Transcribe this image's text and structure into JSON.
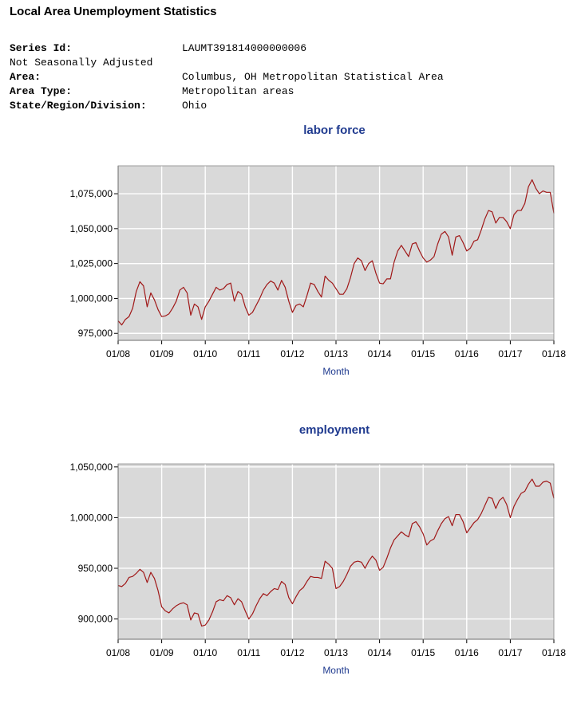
{
  "page": {
    "title": "Local Area Unemployment Statistics"
  },
  "meta": {
    "series_id_label": "Series Id:",
    "series_id_value": "LAUMT391814000000006",
    "adjustment": "Not Seasonally Adjusted",
    "area_label": "Area:",
    "area_value": "Columbus, OH Metropolitan Statistical Area",
    "area_type_label": "Area Type:",
    "area_type_value": "Metropolitan areas",
    "state_label": "State/Region/Division:",
    "state_value": "Ohio"
  },
  "colors": {
    "line": "#a01818",
    "plot_bg": "#d9d9d9",
    "grid": "#ffffff",
    "title": "#1f3a8f"
  },
  "chart_data": [
    {
      "type": "line",
      "title": "labor force",
      "xlabel": "Month",
      "ylabel": "",
      "x_ticks": [
        "01/08",
        "01/09",
        "01/10",
        "01/11",
        "01/12",
        "01/13",
        "01/14",
        "01/15",
        "01/16",
        "01/17",
        "01/18"
      ],
      "y_ticks": [
        975000,
        1000000,
        1025000,
        1050000,
        1075000
      ],
      "y_tick_labels": [
        "975,000",
        "1,000,000",
        "1,025,000",
        "1,050,000",
        "1,075,000"
      ],
      "ylim": [
        970000,
        1095000
      ],
      "x_start": "01/08",
      "x_end": "01/18",
      "grid": true,
      "series": [
        {
          "values": [
            984000,
            981000,
            985000,
            987000,
            993000,
            1005000,
            1012000,
            1009000,
            994000,
            1004000,
            999000,
            992000,
            987000,
            987500,
            989000,
            993000,
            998000,
            1006000,
            1008000,
            1004000,
            988000,
            996000,
            994000,
            985000,
            994000,
            998000,
            1003000,
            1008000,
            1006000,
            1007000,
            1010000,
            1011000,
            998000,
            1005000,
            1003000,
            994000,
            988000,
            990000,
            995000,
            1000000,
            1006000,
            1010000,
            1012500,
            1011000,
            1006000,
            1013000,
            1008000,
            998000,
            990000,
            995000,
            996000,
            994000,
            1002000,
            1011000,
            1010000,
            1005000,
            1001000,
            1016000,
            1013000,
            1011000,
            1007000,
            1003000,
            1003000,
            1007000,
            1015000,
            1025000,
            1029000,
            1027000,
            1020000,
            1025000,
            1027000,
            1018000,
            1011000,
            1010500,
            1014000,
            1014000,
            1026000,
            1034000,
            1038000,
            1034000,
            1030000,
            1039000,
            1040000,
            1034000,
            1029000,
            1026000,
            1027500,
            1030000,
            1039000,
            1046000,
            1048000,
            1044000,
            1031000,
            1044000,
            1045000,
            1040000,
            1034000,
            1036000,
            1041000,
            1042000,
            1049000,
            1057000,
            1063000,
            1062000,
            1054000,
            1058000,
            1058000,
            1055000,
            1050000,
            1060000,
            1063000,
            1063000,
            1068000,
            1080000,
            1085000,
            1079000,
            1075000,
            1077000,
            1076000,
            1076000,
            1061000
          ]
        }
      ]
    },
    {
      "type": "line",
      "title": "employment",
      "xlabel": "Month",
      "ylabel": "",
      "x_ticks": [
        "01/08",
        "01/09",
        "01/10",
        "01/11",
        "01/12",
        "01/13",
        "01/14",
        "01/15",
        "01/16",
        "01/17",
        "01/18"
      ],
      "y_ticks": [
        900000,
        950000,
        1000000,
        1050000
      ],
      "y_tick_labels": [
        "900,000",
        "950,000",
        "1,000,000",
        "1,050,000"
      ],
      "ylim": [
        880000,
        1053000
      ],
      "x_start": "01/08",
      "x_end": "01/18",
      "grid": true,
      "series": [
        {
          "values": [
            933000,
            932000,
            935000,
            941000,
            942000,
            945000,
            949000,
            946000,
            936000,
            946000,
            940000,
            928000,
            912000,
            908000,
            906000,
            910000,
            913000,
            915000,
            916000,
            914000,
            899000,
            906000,
            905000,
            893000,
            894000,
            899000,
            907000,
            917000,
            919000,
            918000,
            923000,
            921000,
            914000,
            920000,
            917000,
            908000,
            900000,
            905000,
            913000,
            920000,
            925000,
            923000,
            927000,
            930000,
            929000,
            937000,
            934000,
            921000,
            915000,
            922000,
            928000,
            931000,
            937000,
            942000,
            941000,
            941000,
            940000,
            957000,
            954000,
            950000,
            930000,
            932000,
            937000,
            944000,
            952000,
            956000,
            957000,
            956000,
            950000,
            957000,
            962000,
            958000,
            948000,
            951000,
            960000,
            970000,
            978000,
            982000,
            986000,
            983000,
            981000,
            994000,
            996000,
            991000,
            984000,
            973000,
            977000,
            979000,
            987000,
            994000,
            999000,
            1001000,
            992000,
            1003000,
            1003000,
            996000,
            985000,
            990000,
            995000,
            998000,
            1004000,
            1012000,
            1020000,
            1019000,
            1009000,
            1017000,
            1020000,
            1013000,
            1000000,
            1011000,
            1018000,
            1024000,
            1026000,
            1033000,
            1038000,
            1031000,
            1031000,
            1035000,
            1036000,
            1034000,
            1019000
          ]
        }
      ]
    }
  ]
}
